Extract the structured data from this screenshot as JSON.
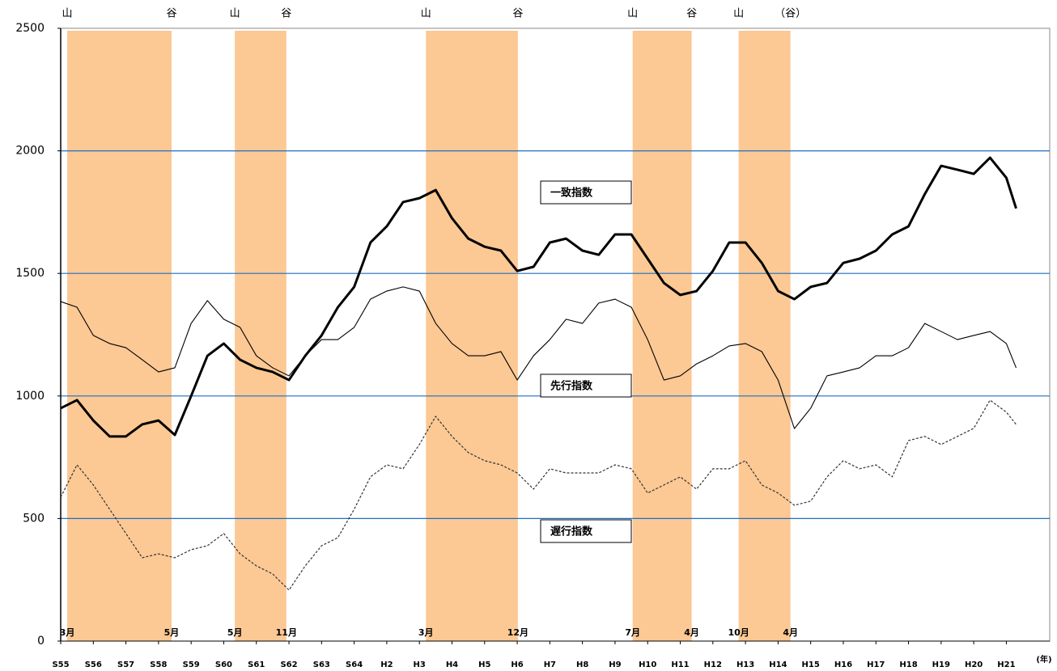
{
  "chart_data": {
    "type": "line",
    "x_unit": "(年)",
    "x": [
      0,
      0.5,
      1,
      1.5,
      2,
      2.5,
      3,
      3.5,
      4,
      4.5,
      5,
      5.5,
      6,
      6.5,
      7,
      7.5,
      8,
      8.5,
      9,
      9.5,
      10,
      10.5,
      11,
      11.5,
      12,
      12.5,
      13,
      13.5,
      14,
      14.5,
      15,
      15.5,
      16,
      16.5,
      17,
      17.5,
      18,
      18.5,
      19,
      19.5,
      20,
      20.5,
      21,
      21.5,
      22,
      22.5,
      23,
      23.5,
      24,
      24.5,
      25,
      25.5,
      26,
      26.5,
      27,
      27.5,
      28,
      28.5,
      29,
      29.3
    ],
    "series": [
      {
        "name": "一致指数",
        "color": "#000000",
        "values": [
          950,
          983,
          900,
          835,
          835,
          884,
          900,
          841,
          1000,
          1164,
          1214,
          1148,
          1115,
          1098,
          1065,
          1164,
          1247,
          1362,
          1445,
          1626,
          1692,
          1791,
          1807,
          1840,
          1725,
          1642,
          1609,
          1593,
          1510,
          1527,
          1626,
          1642,
          1593,
          1576,
          1659,
          1659,
          1560,
          1461,
          1412,
          1428,
          1510,
          1626,
          1626,
          1543,
          1428,
          1395,
          1445,
          1461,
          1543,
          1560,
          1593,
          1659,
          1692,
          1824,
          1939,
          1923,
          1906,
          1972,
          1890,
          1765
        ]
      },
      {
        "name": "先行指数",
        "color": "#000000",
        "values": [
          1385,
          1362,
          1247,
          1214,
          1197,
          1148,
          1098,
          1115,
          1296,
          1389,
          1313,
          1280,
          1164,
          1115,
          1082,
          1164,
          1230,
          1230,
          1280,
          1395,
          1428,
          1445,
          1428,
          1296,
          1214,
          1164,
          1164,
          1181,
          1065,
          1164,
          1230,
          1313,
          1296,
          1379,
          1395,
          1362,
          1230,
          1065,
          1082,
          1131,
          1164,
          1204,
          1214,
          1181,
          1065,
          867,
          950,
          1082,
          1098,
          1115,
          1164,
          1164,
          1197,
          1296,
          1263,
          1230,
          1247,
          1263,
          1214,
          1115
        ]
      },
      {
        "name": "遅行指数",
        "color": "#333333",
        "values": [
          587,
          719,
          637,
          538,
          439,
          340,
          356,
          340,
          373,
          389,
          439,
          356,
          307,
          274,
          208,
          307,
          389,
          422,
          538,
          670,
          719,
          703,
          802,
          917,
          835,
          769,
          736,
          719,
          686,
          620,
          703,
          686,
          686,
          686,
          719,
          703,
          604,
          637,
          670,
          620,
          703,
          703,
          736,
          637,
          604,
          554,
          571,
          670,
          736,
          703,
          719,
          670,
          818,
          835,
          802,
          835,
          868,
          983,
          934,
          884
        ]
      }
    ],
    "recessions": [
      {
        "start": 0.2,
        "end": 3.4,
        "peak": "山",
        "trough": "谷",
        "start_month": "3月",
        "end_month": "5月"
      },
      {
        "start": 5.34,
        "end": 6.92,
        "peak": "山",
        "trough": "谷",
        "start_month": "5月",
        "end_month": "11月"
      },
      {
        "start": 11.2,
        "end": 14.02,
        "peak": "山",
        "trough": "谷",
        "start_month": "3月",
        "end_month": "12月"
      },
      {
        "start": 17.54,
        "end": 19.35,
        "peak": "山",
        "trough": "谷",
        "start_month": "7月",
        "end_month": "4月"
      },
      {
        "start": 20.79,
        "end": 22.38,
        "peak": "山",
        "trough": "（谷）",
        "start_month": "10月",
        "end_month": "4月"
      }
    ],
    "recession_color": "#fcc894",
    "grid_color": "#1f6fc0",
    "xlim": [
      0,
      30.33
    ],
    "xticks": [
      {
        "value": 0,
        "label": "S55"
      },
      {
        "value": 1,
        "label": "S56"
      },
      {
        "value": 2,
        "label": "S57"
      },
      {
        "value": 3,
        "label": "S58"
      },
      {
        "value": 4,
        "label": "S59"
      },
      {
        "value": 5,
        "label": "S60"
      },
      {
        "value": 6,
        "label": "S61"
      },
      {
        "value": 7,
        "label": "S62"
      },
      {
        "value": 8,
        "label": "S63"
      },
      {
        "value": 9,
        "label": "S64"
      },
      {
        "value": 10,
        "label": "H2"
      },
      {
        "value": 11,
        "label": "H3"
      },
      {
        "value": 12,
        "label": "H4"
      },
      {
        "value": 13,
        "label": "H5"
      },
      {
        "value": 14,
        "label": "H6"
      },
      {
        "value": 15,
        "label": "H7"
      },
      {
        "value": 16,
        "label": "H8"
      },
      {
        "value": 17,
        "label": "H9"
      },
      {
        "value": 18,
        "label": "H10"
      },
      {
        "value": 19,
        "label": "H11"
      },
      {
        "value": 20,
        "label": "H12"
      },
      {
        "value": 21,
        "label": "H13"
      },
      {
        "value": 22,
        "label": "H14"
      },
      {
        "value": 23,
        "label": "H15"
      },
      {
        "value": 24,
        "label": "H16"
      },
      {
        "value": 25,
        "label": "H17"
      },
      {
        "value": 26,
        "label": "H18"
      },
      {
        "value": 27,
        "label": "H19"
      },
      {
        "value": 28,
        "label": "H20"
      },
      {
        "value": 29,
        "label": "H21"
      }
    ],
    "ylim": [
      0,
      2500
    ],
    "yticks": [
      0,
      500,
      1000,
      1500,
      2000,
      2500
    ],
    "grid": true
  }
}
